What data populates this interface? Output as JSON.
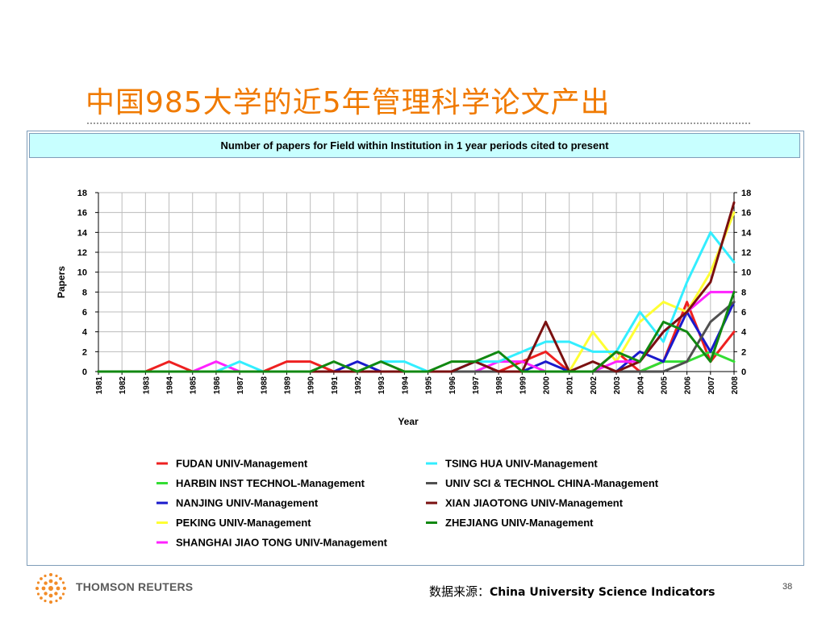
{
  "slide": {
    "title": "中国985大学的近5年管理科学论文产出",
    "source_label": "数据来源：",
    "source_text": "China University Science Indicators",
    "page_number": "38",
    "brand_text": "THOMSON REUTERS"
  },
  "chart_data": {
    "type": "line",
    "title": "Number of papers for Field within Institution in 1 year periods cited to present",
    "xlabel": "Year",
    "ylabel": "Papers",
    "ylim": [
      0,
      18
    ],
    "y_ticks": [
      0,
      2,
      4,
      6,
      8,
      10,
      12,
      14,
      16,
      18
    ],
    "grid": true,
    "legend_position": "bottom",
    "x": [
      "1981",
      "1982",
      "1983",
      "1984",
      "1985",
      "1986",
      "1987",
      "1988",
      "1989",
      "1990",
      "1991",
      "1992",
      "1993",
      "1994",
      "1995",
      "1996",
      "1997",
      "1998",
      "1999",
      "2000",
      "2001",
      "2002",
      "2003",
      "2004",
      "2005",
      "2006",
      "2007",
      "2008"
    ],
    "series": [
      {
        "name": "FUDAN UNIV-Management",
        "color": "#ee2020",
        "values": [
          0,
          0,
          0,
          1,
          0,
          0,
          0,
          0,
          1,
          1,
          0,
          0,
          0,
          0,
          0,
          0,
          0,
          0,
          1,
          2,
          0,
          0,
          2,
          0,
          1,
          7,
          1,
          4
        ]
      },
      {
        "name": "HARBIN INST TECHNOL-Management",
        "color": "#33dd33",
        "values": [
          0,
          0,
          0,
          0,
          0,
          0,
          0,
          0,
          0,
          0,
          0,
          0,
          0,
          0,
          0,
          0,
          0,
          0,
          0,
          0,
          0,
          0,
          0,
          0,
          1,
          1,
          2,
          1
        ]
      },
      {
        "name": "NANJING UNIV-Management",
        "color": "#1a1acc",
        "values": [
          0,
          0,
          0,
          0,
          0,
          0,
          0,
          0,
          0,
          0,
          0,
          1,
          0,
          0,
          0,
          0,
          1,
          0,
          0,
          1,
          0,
          0,
          0,
          2,
          1,
          6,
          2,
          7
        ]
      },
      {
        "name": "PEKING UNIV-Management",
        "color": "#ffff33",
        "values": [
          0,
          0,
          0,
          0,
          0,
          0,
          0,
          0,
          0,
          0,
          0,
          0,
          0,
          0,
          0,
          0,
          0,
          0,
          0,
          0,
          0,
          4,
          1,
          5,
          7,
          6,
          10,
          16
        ]
      },
      {
        "name": "SHANGHAI JIAO TONG UNIV-Management",
        "color": "#ff22ff",
        "values": [
          0,
          0,
          0,
          0,
          0,
          1,
          0,
          0,
          0,
          0,
          0,
          0,
          0,
          0,
          0,
          0,
          0,
          1,
          1,
          0,
          0,
          0,
          1,
          1,
          4,
          6,
          8,
          8
        ]
      },
      {
        "name": "TSING HUA UNIV-Management",
        "color": "#33eeff",
        "values": [
          0,
          0,
          0,
          0,
          0,
          0,
          1,
          0,
          0,
          0,
          0,
          0,
          1,
          1,
          0,
          0,
          1,
          1,
          2,
          3,
          3,
          2,
          2,
          6,
          3,
          9,
          14,
          11
        ]
      },
      {
        "name": "UNIV SCI & TECHNOL CHINA-Management",
        "color": "#505050",
        "values": [
          0,
          0,
          0,
          0,
          0,
          0,
          0,
          0,
          0,
          0,
          0,
          0,
          0,
          0,
          0,
          0,
          0,
          0,
          0,
          0,
          0,
          0,
          0,
          0,
          0,
          1,
          5,
          7
        ]
      },
      {
        "name": "XIAN JIAOTONG UNIV-Management",
        "color": "#7a1010",
        "values": [
          0,
          0,
          0,
          0,
          0,
          0,
          0,
          0,
          0,
          0,
          0,
          0,
          0,
          0,
          0,
          0,
          1,
          0,
          0,
          5,
          0,
          1,
          0,
          1,
          4,
          6,
          9,
          17
        ]
      },
      {
        "name": "ZHEJIANG UNIV-Management",
        "color": "#118811",
        "values": [
          0,
          0,
          0,
          0,
          0,
          0,
          0,
          0,
          0,
          0,
          1,
          0,
          1,
          0,
          0,
          1,
          1,
          2,
          0,
          0,
          0,
          0,
          2,
          1,
          5,
          4,
          1,
          8
        ]
      }
    ]
  }
}
